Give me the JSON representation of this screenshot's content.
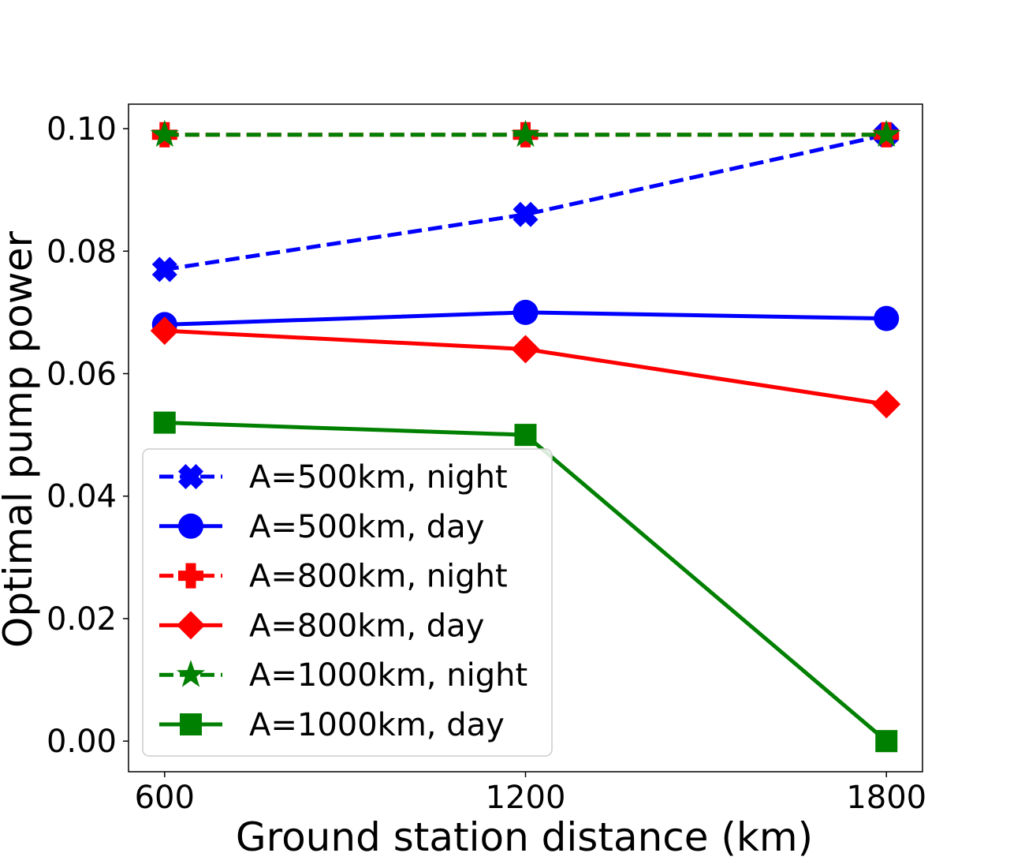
{
  "chart_data": {
    "type": "line",
    "title": "",
    "xlabel": "Ground station distance (km)",
    "ylabel": "Optimal pump power",
    "x": [
      600,
      1200,
      1800
    ],
    "x_tick_labels": [
      "600",
      "1200",
      "1800"
    ],
    "xlim": [
      540,
      1860
    ],
    "ylim": [
      -0.005,
      0.104
    ],
    "y_ticks": [
      0.0,
      0.02,
      0.04,
      0.06,
      0.08,
      0.1
    ],
    "y_tick_labels": [
      "0.00",
      "0.02",
      "0.04",
      "0.06",
      "0.08",
      "0.10"
    ],
    "grid": false,
    "legend_position": "lower-left",
    "series": [
      {
        "name": "A=500km, night",
        "values": [
          0.077,
          0.086,
          0.099
        ],
        "color": "#0000ff",
        "dashed": true,
        "marker": "x"
      },
      {
        "name": "A=500km, day",
        "values": [
          0.068,
          0.07,
          0.069
        ],
        "color": "#0000ff",
        "dashed": false,
        "marker": "circle"
      },
      {
        "name": "A=800km, night",
        "values": [
          0.099,
          0.099,
          0.099
        ],
        "color": "#ff0000",
        "dashed": true,
        "marker": "plus"
      },
      {
        "name": "A=800km, day",
        "values": [
          0.067,
          0.064,
          0.055
        ],
        "color": "#ff0000",
        "dashed": false,
        "marker": "diamond"
      },
      {
        "name": "A=1000km, night",
        "values": [
          0.099,
          0.099,
          0.099
        ],
        "color": "#008000",
        "dashed": true,
        "marker": "star"
      },
      {
        "name": "A=1000km, day",
        "values": [
          0.052,
          0.05,
          0.0
        ],
        "color": "#008000",
        "dashed": false,
        "marker": "square"
      }
    ]
  }
}
